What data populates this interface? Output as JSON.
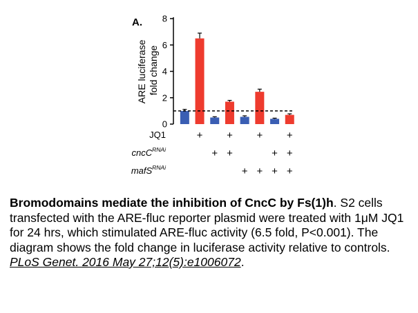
{
  "chart_data": {
    "type": "bar",
    "panel_label": "A.",
    "ylabel_lines": [
      "ARE luciferase",
      "fold change"
    ],
    "ylim": [
      0,
      8
    ],
    "yticks": [
      "0",
      "2",
      "4",
      "6",
      "8"
    ],
    "reference_line": 1,
    "grid": false,
    "legend": "none",
    "colors": [
      "#3a5eb3",
      "#ee3b2e",
      "#3a5eb3",
      "#ee3b2e",
      "#3a5eb3",
      "#ee3b2e",
      "#3a5eb3",
      "#ee3b2e"
    ],
    "values": [
      1.0,
      6.5,
      0.5,
      1.7,
      0.55,
      2.45,
      0.4,
      0.7
    ],
    "errors": [
      0.12,
      0.4,
      0.06,
      0.1,
      0.08,
      0.2,
      0.05,
      0.08
    ],
    "conditions": [
      {
        "label": "JQ1",
        "base": "",
        "sup": "",
        "marks": [
          false,
          true,
          false,
          true,
          false,
          true,
          false,
          true
        ]
      },
      {
        "label": "",
        "base": "cncC",
        "sup": "RNAi",
        "marks": [
          false,
          false,
          true,
          true,
          false,
          false,
          true,
          true
        ]
      },
      {
        "label": "",
        "base": "mafS",
        "sup": "RNAi",
        "marks": [
          false,
          false,
          false,
          false,
          true,
          true,
          true,
          true
        ]
      }
    ],
    "plus_symbol": "+"
  },
  "caption": {
    "title": "Bromodomains mediate the inhibition of CncC by Fs(1)h",
    "title_end": ".",
    "body": "S2 cells transfected with the ARE-fluc reporter plasmid were treated with 1μM JQ1 for 24 hrs, which stimulated ARE-fluc activity (6.5 fold, P<0.001). The diagram shows the fold change in luciferase activity relative to controls.",
    "citation": "PLoS Genet. 2016 May 27;12(5):e1006072",
    "citation_end": "."
  }
}
